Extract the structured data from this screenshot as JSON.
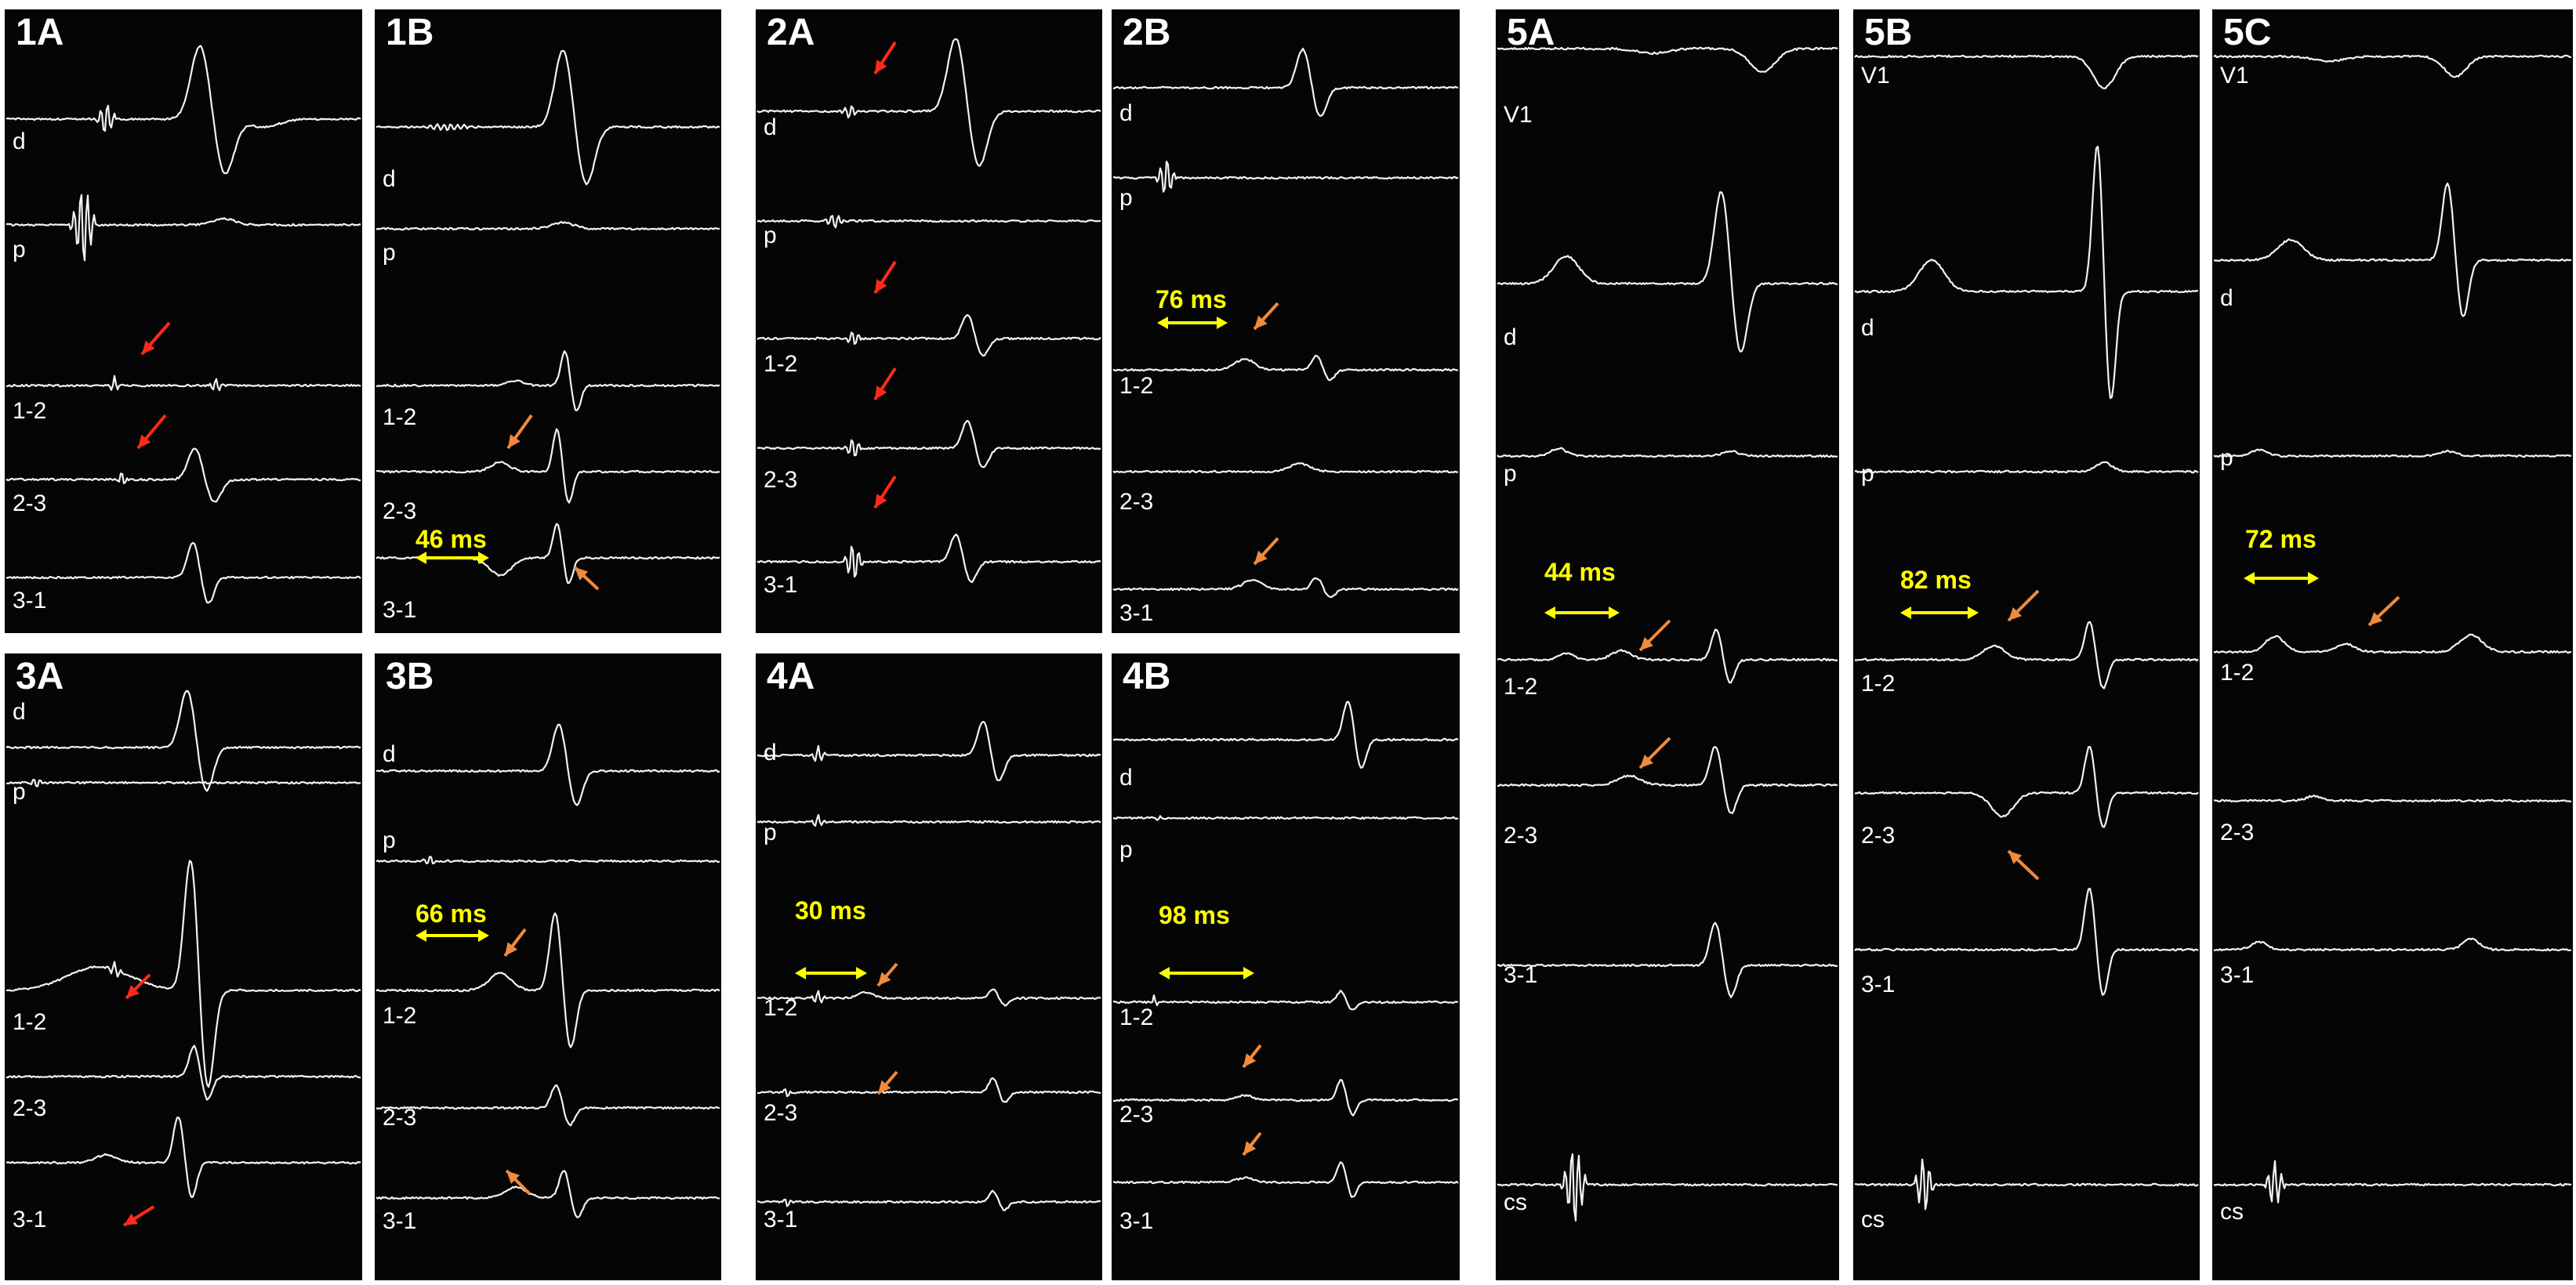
{
  "figure": {
    "colors": {
      "background": "#ffffff",
      "panel": "#050505",
      "trace": "#f2f2f2",
      "label": "#ffffff",
      "measure": "#ffff00",
      "arrow_red": "#ff2a1a",
      "arrow_orange": "#f08a3c"
    },
    "panels": [
      {
        "id": "1A",
        "title": "1A",
        "leads": [
          "d",
          "p",
          "1-2",
          "2-3",
          "3-1"
        ],
        "measurement": "",
        "arrows": [
          "red",
          "red"
        ]
      },
      {
        "id": "1B",
        "title": "1B",
        "leads": [
          "d",
          "p",
          "1-2",
          "2-3",
          "3-1"
        ],
        "measurement": "46 ms",
        "arrows": [
          "orange",
          "orange"
        ]
      },
      {
        "id": "2A",
        "title": "2A",
        "leads": [
          "d",
          "p",
          "1-2",
          "2-3",
          "3-1"
        ],
        "measurement": "",
        "arrows": [
          "red",
          "red",
          "red",
          "red"
        ]
      },
      {
        "id": "2B",
        "title": "2B",
        "leads": [
          "d",
          "p",
          "1-2",
          "2-3",
          "3-1"
        ],
        "measurement": "76 ms",
        "arrows": [
          "orange",
          "orange"
        ]
      },
      {
        "id": "3A",
        "title": "3A",
        "leads": [
          "d",
          "p",
          "1-2",
          "2-3",
          "3-1"
        ],
        "measurement": "",
        "arrows": [
          "red",
          "red"
        ]
      },
      {
        "id": "3B",
        "title": "3B",
        "leads": [
          "d",
          "p",
          "1-2",
          "2-3",
          "3-1"
        ],
        "measurement": "66 ms",
        "arrows": [
          "orange",
          "orange"
        ]
      },
      {
        "id": "4A",
        "title": "4A",
        "leads": [
          "d",
          "p",
          "1-2",
          "2-3",
          "3-1"
        ],
        "measurement": "30 ms",
        "arrows": [
          "orange",
          "orange"
        ]
      },
      {
        "id": "4B",
        "title": "4B",
        "leads": [
          "d",
          "p",
          "1-2",
          "2-3",
          "3-1"
        ],
        "measurement": "98 ms",
        "arrows": [
          "orange",
          "orange",
          "orange"
        ]
      },
      {
        "id": "5A",
        "title": "5A",
        "leads": [
          "V1",
          "d",
          "p",
          "1-2",
          "2-3",
          "3-1",
          "cs"
        ],
        "measurement": "44 ms",
        "arrows": [
          "orange",
          "orange"
        ]
      },
      {
        "id": "5B",
        "title": "5B",
        "leads": [
          "V1",
          "d",
          "p",
          "1-2",
          "2-3",
          "3-1",
          "cs"
        ],
        "measurement": "82 ms",
        "arrows": [
          "orange",
          "orange"
        ]
      },
      {
        "id": "5C",
        "title": "5C",
        "leads": [
          "V1",
          "d",
          "p",
          "1-2",
          "2-3",
          "3-1",
          "cs"
        ],
        "measurement": "72 ms",
        "arrows": [
          "orange"
        ]
      }
    ]
  }
}
